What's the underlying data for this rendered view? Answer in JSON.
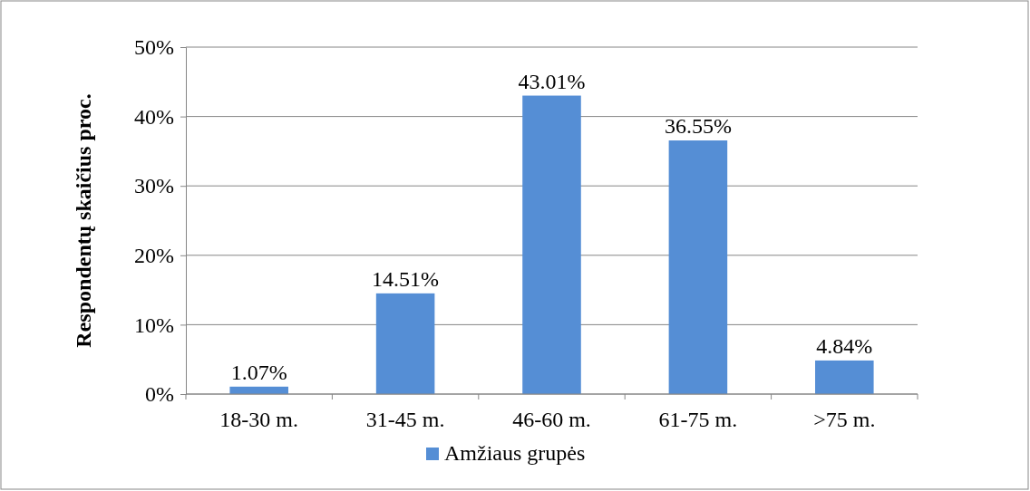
{
  "chart_data": {
    "type": "bar",
    "ylabel": "Respondentų skaičius proc.",
    "categories": [
      "18-30 m.",
      "31-45 m.",
      "46-60 m.",
      "61-75 m.",
      ">75 m."
    ],
    "series": [
      {
        "name": "Amžiaus grupės",
        "color": "#558ed5",
        "values": [
          1.07,
          14.51,
          43.01,
          36.55,
          4.84
        ],
        "value_labels": [
          "1.07%",
          "14.51%",
          "43.01%",
          "36.55%",
          "4.84%"
        ]
      }
    ],
    "ylim": [
      0,
      50
    ],
    "yticks": [
      {
        "value": 0,
        "label": "0%"
      },
      {
        "value": 10,
        "label": "10%"
      },
      {
        "value": 20,
        "label": "20%"
      },
      {
        "value": 30,
        "label": "30%"
      },
      {
        "value": 40,
        "label": "40%"
      },
      {
        "value": 50,
        "label": "50%"
      }
    ],
    "grid": "y",
    "legend": "bottom"
  }
}
